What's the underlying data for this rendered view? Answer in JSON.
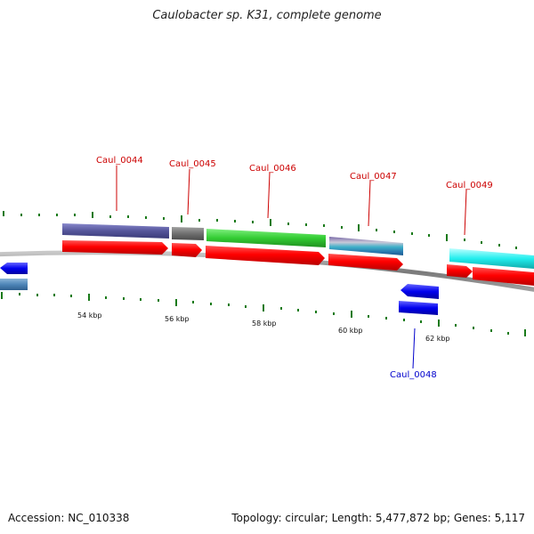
{
  "title": "Caulobacter sp. K31, complete genome",
  "footer": {
    "accession": "Accession: NC_010338",
    "summary": "Topology: circular; Length: 5,477,872 bp; Genes: 5,117"
  },
  "colors": {
    "backbone": "#8a8a8a",
    "tick": "#1a7a1a",
    "forward_label": "#cc0000",
    "reverse_label": "#0000cc"
  },
  "scale_labels": [
    "54 kbp",
    "56 kbp",
    "58 kbp",
    "60 kbp",
    "62 kbp"
  ],
  "gene_labels": {
    "caul_0044": "Caul_0044",
    "caul_0045": "Caul_0045",
    "caul_0046": "Caul_0046",
    "caul_0047": "Caul_0047",
    "caul_0048": "Caul_0048",
    "caul_0049": "Caul_0049"
  }
}
